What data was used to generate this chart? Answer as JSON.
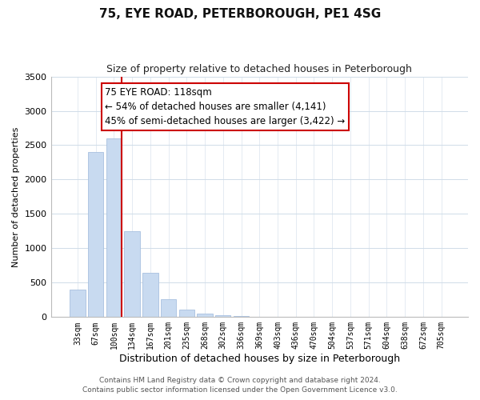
{
  "title": "75, EYE ROAD, PETERBOROUGH, PE1 4SG",
  "subtitle": "Size of property relative to detached houses in Peterborough",
  "xlabel": "Distribution of detached houses by size in Peterborough",
  "ylabel": "Number of detached properties",
  "categories": [
    "33sqm",
    "67sqm",
    "100sqm",
    "134sqm",
    "167sqm",
    "201sqm",
    "235sqm",
    "268sqm",
    "302sqm",
    "336sqm",
    "369sqm",
    "403sqm",
    "436sqm",
    "470sqm",
    "504sqm",
    "537sqm",
    "571sqm",
    "604sqm",
    "638sqm",
    "672sqm",
    "705sqm"
  ],
  "values": [
    400,
    2400,
    2600,
    1250,
    640,
    260,
    105,
    50,
    25,
    10,
    5,
    3,
    0,
    0,
    0,
    0,
    0,
    0,
    0,
    0,
    0
  ],
  "bar_color": "#c8daf0",
  "bar_edge_color": "#a8c0e0",
  "vline_x_idx": 2,
  "vline_color": "#cc0000",
  "ylim": [
    0,
    3500
  ],
  "yticks": [
    0,
    500,
    1000,
    1500,
    2000,
    2500,
    3000,
    3500
  ],
  "annotation_line1": "75 EYE ROAD: 118sqm",
  "annotation_line2": "← 54% of detached houses are smaller (4,141)",
  "annotation_line3": "45% of semi-detached houses are larger (3,422) →",
  "annotation_box_edgecolor": "#cc0000",
  "annotation_box_facecolor": "#ffffff",
  "footer_line1": "Contains HM Land Registry data © Crown copyright and database right 2024.",
  "footer_line2": "Contains public sector information licensed under the Open Government Licence v3.0.",
  "title_fontsize": 11,
  "subtitle_fontsize": 9,
  "xlabel_fontsize": 9,
  "ylabel_fontsize": 8,
  "ytick_fontsize": 8,
  "xtick_fontsize": 7,
  "annotation_fontsize": 8.5,
  "footer_fontsize": 6.5,
  "grid_color": "#d0dce8",
  "background_color": "#ffffff"
}
